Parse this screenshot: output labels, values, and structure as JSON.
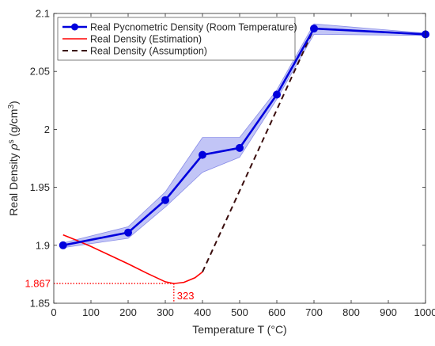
{
  "chart_data": {
    "type": "line",
    "xlabel": "Temperature T (°C)",
    "ylabel_main": "Real Density ",
    "ylabel_rho": "ρ",
    "ylabel_sup": "s",
    "ylabel_unit": " (g/cm",
    "ylabel_unit_sup": "3",
    "ylabel_close": ")",
    "xlim": [
      0,
      1000
    ],
    "ylim": [
      1.85,
      2.1
    ],
    "xticks": [
      0,
      100,
      200,
      300,
      400,
      500,
      600,
      700,
      800,
      900,
      1000
    ],
    "yticks": [
      1.85,
      1.9,
      1.95,
      2,
      2.05,
      2.1
    ],
    "ytick_labels": [
      "1.85",
      "1.9",
      "1.95",
      "2",
      "2.05",
      "2.1"
    ],
    "grid": false,
    "legend_position": "top-left",
    "series": [
      {
        "name": "Real Pycnometric Density (Room Temperature)",
        "color": "#0000dd",
        "band_color": "#9a9ef0",
        "markers": true,
        "points": [
          {
            "x": 25,
            "y": 1.9,
            "lo": 1.898,
            "hi": 1.902
          },
          {
            "x": 200,
            "y": 1.911,
            "lo": 1.906,
            "hi": 1.916
          },
          {
            "x": 300,
            "y": 1.939,
            "lo": 1.933,
            "hi": 1.946
          },
          {
            "x": 400,
            "y": 1.978,
            "lo": 1.963,
            "hi": 1.993
          },
          {
            "x": 500,
            "y": 1.984,
            "lo": 1.976,
            "hi": 1.993
          },
          {
            "x": 600,
            "y": 2.03,
            "lo": 2.026,
            "hi": 2.034
          },
          {
            "x": 700,
            "y": 2.087,
            "lo": 2.082,
            "hi": 2.091
          },
          {
            "x": 1000,
            "y": 2.082,
            "lo": 2.081,
            "hi": 2.083
          }
        ]
      },
      {
        "name": "Real Density (Estimation)",
        "color": "#ff0000",
        "style": "solid",
        "points": [
          {
            "x": 25,
            "y": 1.909
          },
          {
            "x": 60,
            "y": 1.9045
          },
          {
            "x": 100,
            "y": 1.899
          },
          {
            "x": 150,
            "y": 1.8915
          },
          {
            "x": 200,
            "y": 1.884
          },
          {
            "x": 250,
            "y": 1.876
          },
          {
            "x": 300,
            "y": 1.8685
          },
          {
            "x": 323,
            "y": 1.867
          },
          {
            "x": 350,
            "y": 1.868
          },
          {
            "x": 380,
            "y": 1.872
          },
          {
            "x": 400,
            "y": 1.877
          }
        ]
      },
      {
        "name": "Real Density (Assumption)",
        "color": "#3a0d0d",
        "style": "dashed",
        "points": [
          {
            "x": 400,
            "y": 1.877
          },
          {
            "x": 700,
            "y": 2.087
          },
          {
            "x": 1000,
            "y": 2.082
          }
        ]
      }
    ],
    "annotations": [
      {
        "label": "1.867",
        "x": 323,
        "y": 1.867,
        "kind": "y-reference",
        "color": "#ff0000"
      },
      {
        "label": "323",
        "x": 323,
        "y": 1.867,
        "kind": "x-reference",
        "color": "#ff0000"
      }
    ]
  }
}
